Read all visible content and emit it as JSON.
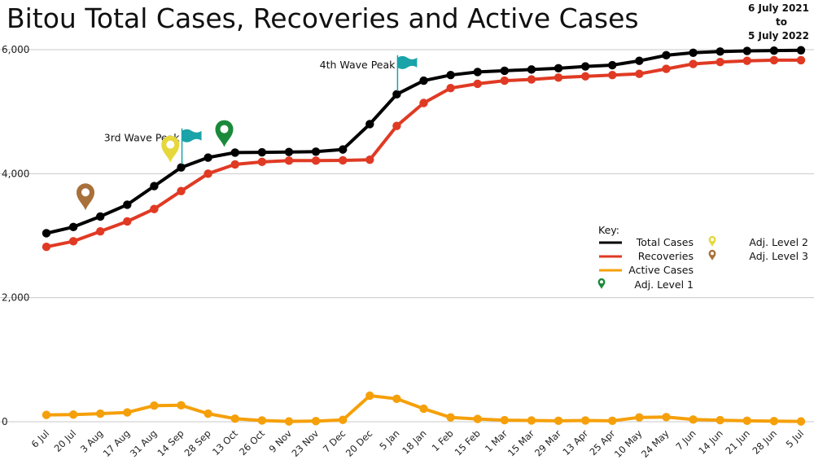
{
  "chart_data": {
    "type": "line",
    "title": "Bitou Total Cases, Recoveries and Active Cases",
    "date_range": {
      "from": "6 July 2021",
      "to_word": "to",
      "to": "5 July 2022"
    },
    "y_ticks": [
      "6,000",
      "4,000",
      "2,000",
      "0"
    ],
    "y_tick_values": [
      6000,
      4000,
      2000,
      0
    ],
    "ylim": [
      0,
      6000
    ],
    "grid": true,
    "categories": [
      "6 Jul",
      "20 Jul",
      "3 Aug",
      "17 Aug",
      "31 Aug",
      "14 Sep",
      "28 Sep",
      "13 Oct",
      "26 Oct",
      "9 Nov",
      "23 Nov",
      "7 Dec",
      "20 Dec",
      "5 Jan",
      "18 Jan",
      "1 Feb",
      "15 Feb",
      "1 Mar",
      "15 Mar",
      "29 Mar",
      "13 Apr",
      "25 Apr",
      "10 May",
      "24 May",
      "7 Jun",
      "14 Jun",
      "21 Jun",
      "28 Jun",
      "5 Jul"
    ],
    "series": [
      {
        "name": "Total Cases",
        "color": "#000000",
        "values": [
          3040,
          3140,
          3310,
          3500,
          3800,
          4100,
          4260,
          4340,
          4345,
          4350,
          4355,
          4390,
          4800,
          5280,
          5500,
          5590,
          5640,
          5660,
          5680,
          5700,
          5730,
          5750,
          5820,
          5910,
          5950,
          5970,
          5980,
          5985,
          5990
        ]
      },
      {
        "name": "Recoveries",
        "color": "#e03a24",
        "values": [
          2820,
          2910,
          3070,
          3230,
          3430,
          3720,
          4000,
          4150,
          4190,
          4210,
          4210,
          4215,
          4225,
          4770,
          5140,
          5380,
          5450,
          5500,
          5520,
          5550,
          5570,
          5590,
          5610,
          5690,
          5770,
          5800,
          5820,
          5830,
          5830
        ]
      },
      {
        "name": "Active Cases",
        "color": "#f5a00a",
        "values": [
          110,
          115,
          130,
          150,
          260,
          265,
          130,
          50,
          20,
          5,
          10,
          30,
          420,
          370,
          210,
          70,
          45,
          25,
          20,
          15,
          20,
          15,
          70,
          75,
          35,
          25,
          15,
          10,
          5
        ]
      }
    ],
    "annotations": [
      {
        "text": "3rd Wave Peak",
        "category": "14 Sep"
      },
      {
        "text": "4th Wave Peak",
        "category": "5 Jan"
      }
    ],
    "markers": [
      {
        "name": "Adj. Level 3",
        "color": "#a8703a",
        "category_index": 1.45,
        "y_value": 3410,
        "icon": "map-pin-icon"
      },
      {
        "name": "Adj. Level 2",
        "color": "#e6d83c",
        "category_index": 4.6,
        "y_value": 4180,
        "icon": "map-pin-icon"
      },
      {
        "name": "Adj. Level 1",
        "color": "#1a8a3a",
        "category_index": 6.6,
        "y_value": 4430,
        "icon": "map-pin-icon"
      }
    ],
    "legend": {
      "title": "Key:",
      "position": "right",
      "lines": [
        "Total Cases",
        "Recoveries",
        "Active Cases"
      ],
      "pins_left": [
        "Adj. Level 1"
      ],
      "pins_right": [
        "Adj. Level 2",
        "Adj. Level 3"
      ]
    }
  }
}
